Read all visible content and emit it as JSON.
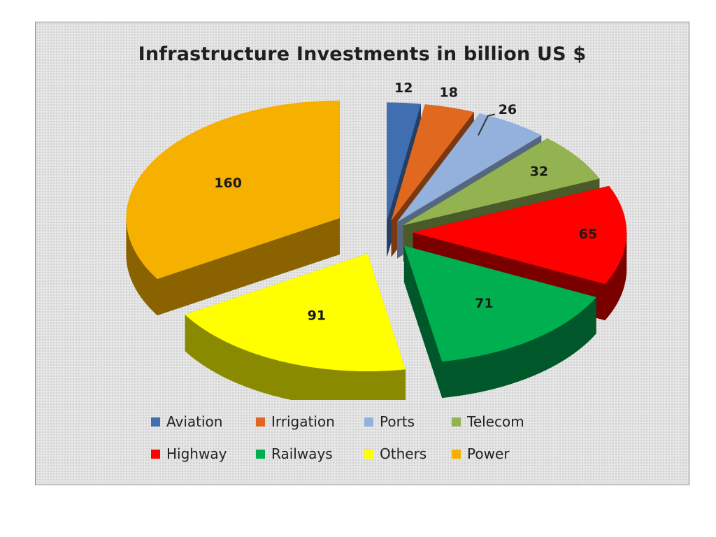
{
  "chart_data": {
    "type": "pie",
    "title": "Infrastructure Investments in billion US $",
    "categories": [
      "Aviation",
      "Irrigation",
      "Ports",
      "Telecom",
      "Highway",
      "Railways",
      "Others",
      "Power"
    ],
    "values": [
      12,
      18,
      26,
      32,
      65,
      71,
      91,
      160
    ],
    "colors": [
      "#3f6fb0",
      "#e0681f",
      "#93b1dc",
      "#93b350",
      "#ff0000",
      "#00b050",
      "#ffff00",
      "#f5b000"
    ],
    "dark_colors": [
      "#243f66",
      "#7a3810",
      "#55677f",
      "#4a5a28",
      "#7a0000",
      "#00582a",
      "#8a8a00",
      "#8a6200"
    ],
    "legend_position": "bottom",
    "style": "3d-exploded"
  }
}
